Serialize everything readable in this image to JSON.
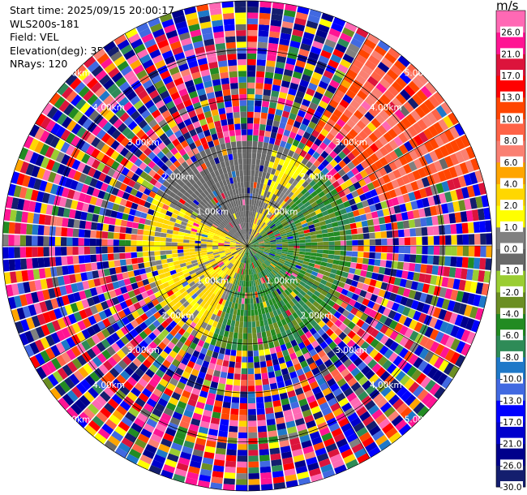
{
  "header": {
    "start_time": "Start time: 2025/09/15 20:00:17",
    "instrument": "WLS200s-181",
    "field": "Field: VEL",
    "elevation": "Elevation(deg): 35.00",
    "nrays": "NRays: 120"
  },
  "colorbar": {
    "title": "m/s",
    "colors": [
      "#141e6e",
      "#00008b",
      "#0000cd",
      "#0000ff",
      "#4169e1",
      "#1e78c8",
      "#2e8b57",
      "#228b22",
      "#6b8e23",
      "#9acd32",
      "#696969",
      "#808080",
      "#ffff00",
      "#ffd700",
      "#ffa500",
      "#fa8072",
      "#ff6347",
      "#ff4500",
      "#ff0000",
      "#dc143c",
      "#ff1493",
      "#ff69b4"
    ],
    "bounds": [
      -30.0,
      -26.0,
      -21.0,
      -17.0,
      -13.0,
      -10.0,
      -8.0,
      -6.0,
      -4.0,
      -2.0,
      -1.0,
      0.0,
      1.0,
      2.0,
      4.0,
      6.0,
      8.0,
      10.0,
      13.0,
      17.0,
      21.0,
      26.0,
      30.0
    ],
    "tick_labels": [
      "-30.0",
      "-26.0",
      "-21.0",
      "-17.0",
      "-13.0",
      "-10.0",
      "-8.0",
      "-6.0",
      "-4.0",
      "-2.0",
      "-1.0",
      "0.0",
      "1.0",
      "2.0",
      "4.0",
      "6.0",
      "8.0",
      "10.0",
      "13.0",
      "17.0",
      "21.0",
      "26.0"
    ]
  },
  "chart_data": {
    "type": "heatmap",
    "subtype": "radar-ppi-polar",
    "field": "VEL",
    "units": "m/s",
    "elevation_deg": 35.0,
    "n_rays": 120,
    "max_range_km": 5.0,
    "range_rings_km": [
      1.0,
      2.0,
      3.0,
      4.0,
      5.0
    ],
    "ring_labels": [
      "1.00km",
      "2.00km",
      "3.00km",
      "4.00km",
      "5.00km"
    ],
    "grid": true,
    "notes": "Near field (< ~2 km): yellow/orange (0 to +4 m/s) to the west, green (-2 to -8 m/s) to the east and south, gray (~0 m/s) to the north-west; beyond ~2.5 km the field is noisy with colours spanning the whole scale; a coherent orange-red (+8 to +13 m/s) sector in the north-east at 3-5 km."
  }
}
